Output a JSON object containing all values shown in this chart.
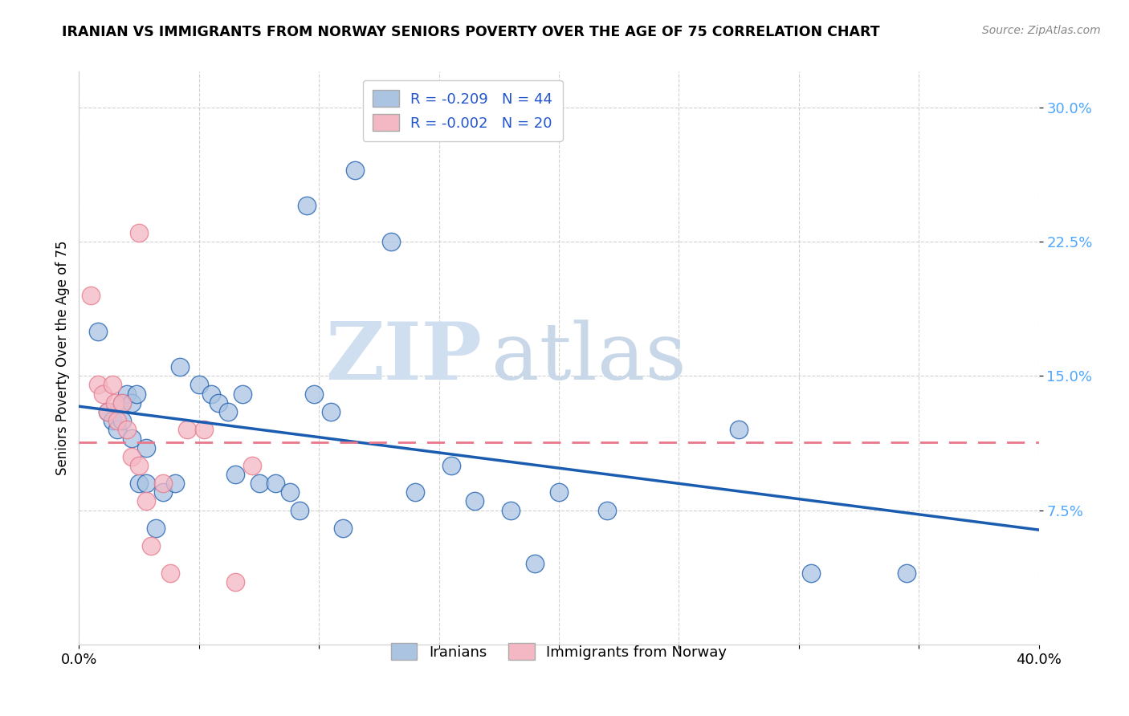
{
  "title": "IRANIAN VS IMMIGRANTS FROM NORWAY SENIORS POVERTY OVER THE AGE OF 75 CORRELATION CHART",
  "source": "Source: ZipAtlas.com",
  "ylabel": "Seniors Poverty Over the Age of 75",
  "legend_r1": "-0.209",
  "legend_n1": "44",
  "legend_r2": "-0.002",
  "legend_n2": "20",
  "xlim": [
    0.0,
    0.4
  ],
  "ylim": [
    0.0,
    0.32
  ],
  "yticks": [
    0.075,
    0.15,
    0.225,
    0.3
  ],
  "ytick_labels": [
    "7.5%",
    "15.0%",
    "22.5%",
    "30.0%"
  ],
  "xticks": [
    0.0,
    0.05,
    0.1,
    0.15,
    0.2,
    0.25,
    0.3,
    0.35,
    0.4
  ],
  "xtick_labels": [
    "0.0%",
    "",
    "",
    "",
    "",
    "",
    "",
    "",
    "40.0%"
  ],
  "color_iranian": "#aac4e2",
  "color_norway": "#f4b8c4",
  "line_color_iranian": "#1a5cb0",
  "line_color_norway": "#e8788a",
  "watermark_zip": "ZIP",
  "watermark_atlas": "atlas",
  "iranians_x": [
    0.008,
    0.012,
    0.014,
    0.016,
    0.018,
    0.018,
    0.02,
    0.022,
    0.022,
    0.024,
    0.025,
    0.028,
    0.028,
    0.032,
    0.035,
    0.04,
    0.042,
    0.05,
    0.055,
    0.058,
    0.062,
    0.065,
    0.068,
    0.075,
    0.082,
    0.088,
    0.092,
    0.095,
    0.098,
    0.105,
    0.11,
    0.115,
    0.125,
    0.13,
    0.14,
    0.155,
    0.165,
    0.18,
    0.19,
    0.2,
    0.22,
    0.275,
    0.305,
    0.345
  ],
  "iranians_y": [
    0.175,
    0.13,
    0.125,
    0.12,
    0.135,
    0.125,
    0.14,
    0.135,
    0.115,
    0.14,
    0.09,
    0.11,
    0.09,
    0.065,
    0.085,
    0.09,
    0.155,
    0.145,
    0.14,
    0.135,
    0.13,
    0.095,
    0.14,
    0.09,
    0.09,
    0.085,
    0.075,
    0.245,
    0.14,
    0.13,
    0.065,
    0.265,
    0.295,
    0.225,
    0.085,
    0.1,
    0.08,
    0.075,
    0.045,
    0.085,
    0.075,
    0.12,
    0.04,
    0.04
  ],
  "norway_x": [
    0.005,
    0.008,
    0.01,
    0.012,
    0.014,
    0.015,
    0.016,
    0.018,
    0.02,
    0.022,
    0.025,
    0.025,
    0.028,
    0.03,
    0.035,
    0.038,
    0.045,
    0.052,
    0.065,
    0.072
  ],
  "norway_y": [
    0.195,
    0.145,
    0.14,
    0.13,
    0.145,
    0.135,
    0.125,
    0.135,
    0.12,
    0.105,
    0.23,
    0.1,
    0.08,
    0.055,
    0.09,
    0.04,
    0.12,
    0.12,
    0.035,
    0.1
  ],
  "line_iranian_x0": 0.0,
  "line_iranian_y0": 0.133,
  "line_iranian_x1": 0.4,
  "line_iranian_y1": 0.064,
  "line_norway_x0": 0.0,
  "line_norway_y0": 0.113,
  "line_norway_x1": 0.4,
  "line_norway_y1": 0.113
}
